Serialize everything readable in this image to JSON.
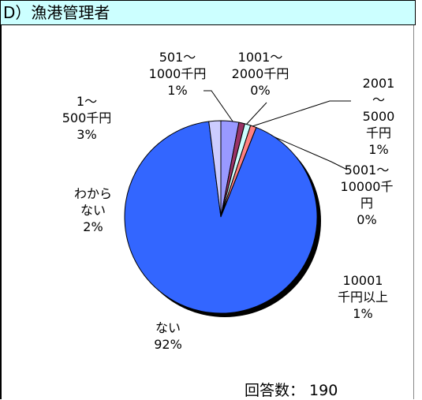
{
  "chart_data": {
    "type": "pie",
    "title": "D）漁港管理者",
    "categories": [
      "1～\n500千円",
      "501～\n1000千円",
      "1001～\n2000千円",
      "2001～\n5000千円",
      "5001～\n10000千\n円",
      "10001\n千円以上",
      "ない",
      "わから\nない"
    ],
    "values": [
      3,
      1,
      0,
      1,
      0,
      1,
      92,
      2
    ],
    "value_labels": [
      "3%",
      "1%",
      "0%",
      "1%",
      "0%",
      "1%",
      "92%",
      "2%"
    ],
    "colors": [
      "#9999ff",
      "#993366",
      "#ffffcc",
      "#ccffff",
      "#660066",
      "#ff8080",
      "#3366ff",
      "#ccccff"
    ],
    "footnote": "回答数： 190"
  }
}
